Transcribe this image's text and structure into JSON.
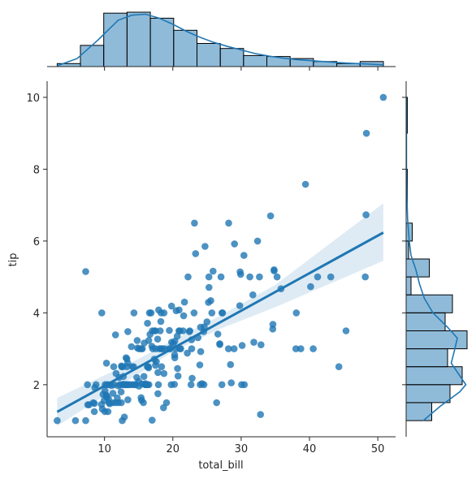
{
  "chart_data": {
    "type": "scatter",
    "xlabel": "total_bill",
    "ylabel": "tip",
    "xlim": [
      1.6,
      52.6
    ],
    "ylim": [
      0.55,
      10.45
    ],
    "xticks": [
      10,
      20,
      30,
      40,
      50
    ],
    "yticks": [
      2,
      4,
      6,
      8,
      10
    ],
    "grid": false,
    "color": "#1f77b4",
    "points": [
      [
        3.07,
        1.0
      ],
      [
        5.75,
        1.0
      ],
      [
        7.25,
        1.0
      ],
      [
        7.25,
        5.15
      ],
      [
        7.51,
        2.0
      ],
      [
        7.56,
        1.44
      ],
      [
        7.74,
        1.44
      ],
      [
        8.35,
        1.5
      ],
      [
        8.51,
        1.25
      ],
      [
        8.52,
        1.48
      ],
      [
        8.58,
        1.92
      ],
      [
        8.77,
        2.0
      ],
      [
        9.55,
        1.45
      ],
      [
        9.6,
        4.0
      ],
      [
        9.68,
        1.32
      ],
      [
        9.78,
        1.73
      ],
      [
        9.94,
        1.56
      ],
      [
        10.07,
        1.25
      ],
      [
        10.07,
        1.83
      ],
      [
        10.09,
        2.0
      ],
      [
        10.27,
        1.71
      ],
      [
        10.29,
        2.6
      ],
      [
        10.33,
        1.67
      ],
      [
        10.34,
        1.66
      ],
      [
        10.34,
        2.0
      ],
      [
        10.51,
        1.25
      ],
      [
        10.59,
        1.61
      ],
      [
        10.63,
        2.0
      ],
      [
        10.65,
        1.5
      ],
      [
        10.77,
        1.47
      ],
      [
        11.02,
        1.98
      ],
      [
        11.17,
        1.5
      ],
      [
        11.24,
        1.76
      ],
      [
        11.35,
        2.5
      ],
      [
        11.38,
        2.0
      ],
      [
        11.59,
        1.5
      ],
      [
        11.61,
        3.39
      ],
      [
        11.69,
        2.31
      ],
      [
        11.87,
        1.63
      ],
      [
        12.02,
        1.97
      ],
      [
        12.03,
        1.5
      ],
      [
        12.16,
        2.2
      ],
      [
        12.26,
        2.0
      ],
      [
        12.43,
        1.8
      ],
      [
        12.46,
        1.5
      ],
      [
        12.48,
        2.52
      ],
      [
        12.54,
        2.5
      ],
      [
        12.6,
        1.0
      ],
      [
        12.66,
        2.5
      ],
      [
        12.69,
        2.0
      ],
      [
        12.74,
        2.01
      ],
      [
        12.76,
        2.23
      ],
      [
        12.9,
        1.1
      ],
      [
        13.0,
        2.0
      ],
      [
        13.03,
        2.0
      ],
      [
        13.13,
        2.0
      ],
      [
        13.16,
        2.75
      ],
      [
        13.27,
        2.5
      ],
      [
        13.28,
        2.72
      ],
      [
        13.37,
        2.0
      ],
      [
        13.39,
        2.61
      ],
      [
        13.42,
        3.48
      ],
      [
        13.42,
        1.58
      ],
      [
        13.51,
        2.0
      ],
      [
        13.81,
        2.0
      ],
      [
        13.94,
        3.06
      ],
      [
        14.07,
        2.5
      ],
      [
        14.15,
        2.0
      ],
      [
        14.26,
        2.5
      ],
      [
        14.31,
        4.0
      ],
      [
        14.48,
        2.0
      ],
      [
        14.52,
        2.0
      ],
      [
        14.73,
        2.2
      ],
      [
        14.78,
        3.23
      ],
      [
        14.83,
        3.02
      ],
      [
        15.01,
        2.09
      ],
      [
        15.04,
        1.96
      ],
      [
        15.06,
        3.0
      ],
      [
        15.36,
        1.64
      ],
      [
        15.38,
        3.0
      ],
      [
        15.42,
        1.57
      ],
      [
        15.48,
        2.02
      ],
      [
        15.53,
        3.0
      ],
      [
        15.69,
        1.5
      ],
      [
        15.77,
        2.23
      ],
      [
        15.81,
        3.16
      ],
      [
        15.95,
        2.0
      ],
      [
        15.98,
        2.03
      ],
      [
        16.0,
        2.0
      ],
      [
        16.21,
        2.0
      ],
      [
        16.27,
        2.5
      ],
      [
        16.29,
        3.71
      ],
      [
        16.31,
        2.0
      ],
      [
        16.4,
        2.5
      ],
      [
        16.45,
        2.47
      ],
      [
        16.47,
        3.23
      ],
      [
        16.49,
        2.0
      ],
      [
        16.58,
        4.0
      ],
      [
        16.66,
        3.4
      ],
      [
        16.82,
        4.0
      ],
      [
        16.93,
        3.07
      ],
      [
        16.97,
        1.01
      ],
      [
        16.99,
        3.5
      ],
      [
        17.07,
        3.0
      ],
      [
        17.29,
        2.71
      ],
      [
        17.31,
        3.5
      ],
      [
        17.46,
        2.54
      ],
      [
        17.47,
        3.5
      ],
      [
        17.51,
        3.0
      ],
      [
        17.59,
        2.64
      ],
      [
        17.78,
        3.27
      ],
      [
        17.81,
        2.34
      ],
      [
        17.82,
        1.75
      ],
      [
        17.89,
        2.0
      ],
      [
        17.92,
        4.08
      ],
      [
        18.04,
        3.0
      ],
      [
        18.15,
        3.5
      ],
      [
        18.24,
        3.76
      ],
      [
        18.28,
        4.0
      ],
      [
        18.29,
        3.0
      ],
      [
        18.35,
        2.5
      ],
      [
        18.43,
        3.0
      ],
      [
        18.64,
        1.36
      ],
      [
        18.69,
        2.31
      ],
      [
        18.71,
        4.0
      ],
      [
        18.78,
        3.0
      ],
      [
        19.08,
        1.5
      ],
      [
        19.44,
        3.0
      ],
      [
        19.49,
        3.51
      ],
      [
        19.65,
        3.0
      ],
      [
        19.77,
        2.0
      ],
      [
        19.81,
        4.19
      ],
      [
        19.82,
        3.18
      ],
      [
        20.08,
        3.15
      ],
      [
        20.23,
        2.01
      ],
      [
        20.27,
        2.83
      ],
      [
        20.29,
        2.75
      ],
      [
        20.29,
        3.21
      ],
      [
        20.45,
        3.0
      ],
      [
        20.49,
        4.06
      ],
      [
        20.65,
        3.35
      ],
      [
        20.69,
        2.45
      ],
      [
        20.76,
        2.24
      ],
      [
        20.9,
        3.5
      ],
      [
        20.92,
        4.08
      ],
      [
        21.01,
        3.5
      ],
      [
        21.01,
        3.0
      ],
      [
        21.16,
        3.0
      ],
      [
        21.5,
        3.5
      ],
      [
        21.58,
        3.92
      ],
      [
        21.7,
        4.3
      ],
      [
        22.12,
        2.88
      ],
      [
        22.23,
        5.0
      ],
      [
        22.42,
        3.48
      ],
      [
        22.49,
        3.5
      ],
      [
        22.67,
        2.0
      ],
      [
        22.75,
        3.25
      ],
      [
        22.76,
        3.0
      ],
      [
        22.82,
        2.18
      ],
      [
        23.1,
        4.0
      ],
      [
        23.17,
        6.5
      ],
      [
        23.33,
        5.65
      ],
      [
        23.68,
        3.31
      ],
      [
        23.95,
        2.55
      ],
      [
        24.01,
        2.0
      ],
      [
        24.06,
        3.6
      ],
      [
        24.08,
        2.92
      ],
      [
        24.27,
        2.03
      ],
      [
        24.52,
        3.48
      ],
      [
        24.55,
        2.0
      ],
      [
        24.59,
        3.61
      ],
      [
        24.71,
        5.85
      ],
      [
        25.0,
        3.75
      ],
      [
        25.21,
        4.29
      ],
      [
        25.28,
        5.0
      ],
      [
        25.29,
        4.71
      ],
      [
        25.56,
        4.34
      ],
      [
        25.71,
        4.0
      ],
      [
        25.89,
        5.16
      ],
      [
        26.41,
        1.5
      ],
      [
        26.59,
        3.41
      ],
      [
        26.86,
        3.14
      ],
      [
        26.88,
        3.12
      ],
      [
        27.05,
        5.0
      ],
      [
        27.18,
        2.0
      ],
      [
        27.2,
        4.0
      ],
      [
        27.28,
        4.0
      ],
      [
        28.15,
        3.0
      ],
      [
        28.17,
        6.5
      ],
      [
        28.44,
        2.56
      ],
      [
        28.55,
        2.05
      ],
      [
        28.97,
        3.0
      ],
      [
        29.03,
        5.92
      ],
      [
        29.8,
        4.2
      ],
      [
        29.85,
        5.14
      ],
      [
        29.93,
        5.07
      ],
      [
        30.06,
        2.0
      ],
      [
        30.14,
        3.09
      ],
      [
        30.4,
        5.6
      ],
      [
        30.46,
        2.0
      ],
      [
        31.27,
        5.0
      ],
      [
        31.71,
        4.5
      ],
      [
        31.85,
        3.18
      ],
      [
        32.4,
        6.0
      ],
      [
        32.68,
        5.0
      ],
      [
        32.83,
        1.17
      ],
      [
        32.9,
        3.11
      ],
      [
        34.3,
        6.7
      ],
      [
        34.63,
        3.55
      ],
      [
        34.65,
        3.68
      ],
      [
        34.81,
        5.2
      ],
      [
        34.83,
        5.17
      ],
      [
        35.26,
        5.0
      ],
      [
        35.83,
        4.67
      ],
      [
        38.01,
        3.0
      ],
      [
        38.07,
        4.0
      ],
      [
        38.73,
        3.0
      ],
      [
        39.42,
        7.58
      ],
      [
        40.17,
        4.73
      ],
      [
        40.55,
        3.0
      ],
      [
        41.19,
        5.0
      ],
      [
        43.11,
        5.0
      ],
      [
        44.3,
        2.5
      ],
      [
        45.35,
        3.5
      ],
      [
        48.17,
        5.0
      ],
      [
        48.27,
        6.73
      ],
      [
        48.33,
        9.0
      ],
      [
        50.81,
        10.0
      ]
    ],
    "regression": {
      "x_range": [
        3.07,
        50.81
      ],
      "line": [
        [
          3.07,
          1.245
        ],
        [
          27.0,
          3.745
        ],
        [
          50.81,
          6.235
        ]
      ],
      "ci_lower": [
        [
          3.07,
          0.85
        ],
        [
          15.0,
          2.3
        ],
        [
          20.0,
          2.92
        ],
        [
          27.0,
          3.56
        ],
        [
          35.0,
          4.16
        ],
        [
          50.81,
          5.45
        ]
      ],
      "ci_upper": [
        [
          3.07,
          1.63
        ],
        [
          15.0,
          2.72
        ],
        [
          20.0,
          3.23
        ],
        [
          27.0,
          3.93
        ],
        [
          35.0,
          4.78
        ],
        [
          50.81,
          7.05
        ]
      ]
    },
    "marginal_x": {
      "bin_edges": [
        3.07,
        6.48,
        9.89,
        13.3,
        16.71,
        20.12,
        23.53,
        26.94,
        30.35,
        33.76,
        37.17,
        40.58,
        43.99,
        47.4,
        50.81
      ],
      "counts": [
        3,
        21,
        53,
        54,
        48,
        36,
        23,
        18,
        11,
        10,
        8,
        5,
        3,
        5
      ],
      "kde": [
        [
          3.07,
          0.8
        ],
        [
          6.0,
          8.0
        ],
        [
          9.0,
          26.0
        ],
        [
          12.0,
          46.0
        ],
        [
          14.0,
          51.0
        ],
        [
          16.0,
          52.0
        ],
        [
          18.0,
          48.0
        ],
        [
          20.0,
          42.0
        ],
        [
          22.0,
          35.0
        ],
        [
          24.0,
          29.0
        ],
        [
          26.0,
          24.0
        ],
        [
          28.0,
          20.0
        ],
        [
          30.0,
          16.5
        ],
        [
          32.0,
          13.0
        ],
        [
          34.0,
          10.5
        ],
        [
          36.0,
          8.5
        ],
        [
          38.0,
          7.0
        ],
        [
          40.0,
          6.0
        ],
        [
          42.0,
          5.0
        ],
        [
          44.0,
          4.0
        ],
        [
          46.0,
          3.3
        ],
        [
          48.0,
          2.7
        ],
        [
          50.81,
          1.8
        ]
      ]
    },
    "marginal_y": {
      "bin_edges": [
        1.0,
        1.5,
        2.0,
        2.5,
        3.0,
        3.5,
        4.0,
        4.5,
        5.0,
        5.5,
        6.0,
        6.5,
        7.0,
        7.5,
        8.0,
        8.5,
        9.0,
        9.5,
        10.0
      ],
      "counts": [
        21,
        36,
        46,
        34,
        50,
        32,
        38,
        4,
        19,
        2,
        5,
        0,
        1,
        1,
        0,
        0,
        1,
        1
      ],
      "kde": [
        [
          1.0,
          14.0
        ],
        [
          1.4,
          28.0
        ],
        [
          1.8,
          44.0
        ],
        [
          2.0,
          49.0
        ],
        [
          2.2,
          45.0
        ],
        [
          2.6,
          37.0
        ],
        [
          3.0,
          40.0
        ],
        [
          3.3,
          42.0
        ],
        [
          3.6,
          34.0
        ],
        [
          4.0,
          22.0
        ],
        [
          4.4,
          15.0
        ],
        [
          4.8,
          11.0
        ],
        [
          5.2,
          8.0
        ],
        [
          5.6,
          4.0
        ],
        [
          6.0,
          2.5
        ],
        [
          6.6,
          1.2
        ],
        [
          7.2,
          0.6
        ],
        [
          8.0,
          0.3
        ],
        [
          9.0,
          0.3
        ],
        [
          10.0,
          0.2
        ]
      ]
    }
  }
}
